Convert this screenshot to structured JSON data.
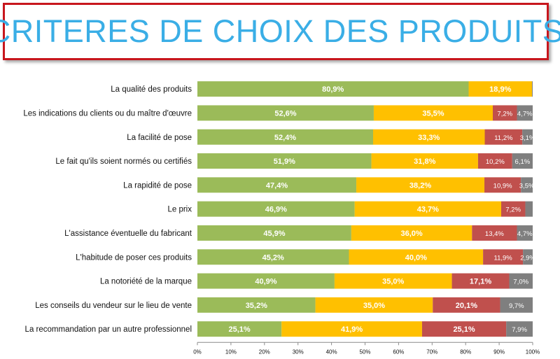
{
  "title": "CRITERES DE CHOIX DES PRODUITS",
  "chart_data": {
    "type": "bar",
    "orientation": "horizontal",
    "stacked": true,
    "xlim": [
      0,
      100
    ],
    "x_ticks": [
      "0%",
      "10%",
      "20%",
      "30%",
      "40%",
      "50%",
      "60%",
      "70%",
      "80%",
      "90%",
      "100%"
    ],
    "categories": [
      "La qualité des produits",
      "Les indications du clients ou du maître d'œuvre",
      "La facilité de pose",
      "Le fait qu'ils soient normés ou certifiés",
      "La rapidité de pose",
      "Le prix",
      "L'assistance éventuelle du fabricant",
      "L'habitude de poser ces produits",
      "La notoriété de la marque",
      "Les conseils du vendeur sur le lieu de vente",
      "La recommandation par un autre professionnel"
    ],
    "series": [
      {
        "name": "series-1",
        "color": "#9bbb59",
        "values": [
          80.9,
          52.6,
          52.4,
          51.9,
          47.4,
          46.9,
          45.9,
          45.2,
          40.9,
          35.2,
          25.1
        ],
        "labels": [
          "80,9%",
          "52,6%",
          "52,4%",
          "51,9%",
          "47,4%",
          "46,9%",
          "45,9%",
          "45,2%",
          "40,9%",
          "35,2%",
          "25,1%"
        ]
      },
      {
        "name": "series-2",
        "color": "#ffc000",
        "values": [
          18.9,
          35.5,
          33.3,
          31.8,
          38.2,
          43.7,
          36.0,
          40.0,
          35.0,
          35.0,
          41.9
        ],
        "labels": [
          "18,9%",
          "35,5%",
          "33,3%",
          "31,8%",
          "38,2%",
          "43,7%",
          "36,0%",
          "40,0%",
          "35,0%",
          "35,0%",
          "41,9%"
        ]
      },
      {
        "name": "series-3",
        "color": "#c0504d",
        "values": [
          0,
          7.2,
          11.2,
          10.2,
          10.9,
          7.2,
          13.4,
          11.9,
          17.1,
          20.1,
          25.1
        ],
        "labels": [
          "",
          "7,2%",
          "11,2%",
          "10,2%",
          "10,9%",
          "7,2%",
          "13,4%",
          "11,9%",
          "17,1%",
          "20,1%",
          "25,1%"
        ]
      },
      {
        "name": "series-4",
        "color": "#7f7f7f",
        "values": [
          0.2,
          4.7,
          3.1,
          6.1,
          3.5,
          2.2,
          4.7,
          2.9,
          7.0,
          9.7,
          7.9
        ],
        "labels": [
          "",
          "4,7%",
          "3,1%",
          "6,1%",
          "3,5%",
          "",
          "4,7%",
          "2,9%",
          "7,0%",
          "9,7%",
          "7,9%"
        ]
      }
    ]
  }
}
